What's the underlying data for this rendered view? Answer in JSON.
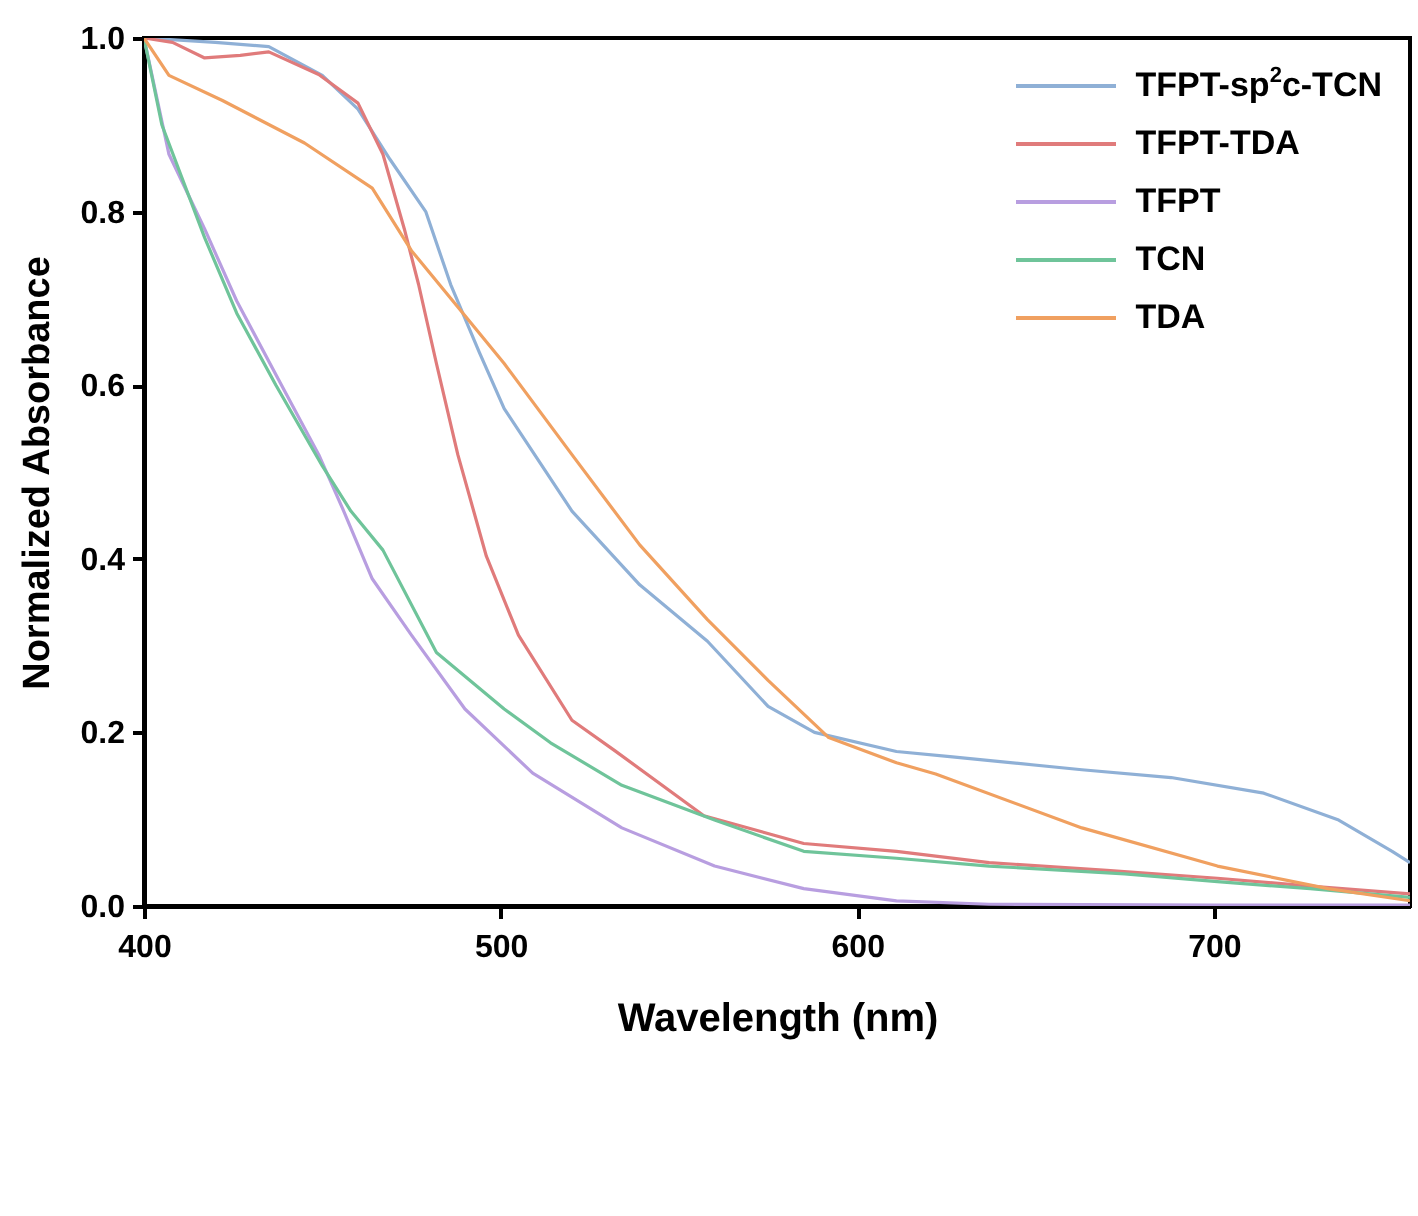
{
  "chart_data": {
    "type": "line",
    "xlabel": "Wavelength (nm)",
    "ylabel": "Normalized Absorbance",
    "xlim": [
      400,
      755
    ],
    "ylim": [
      0,
      1
    ],
    "xticks": [
      400,
      500,
      600,
      700
    ],
    "yticks": [
      {
        "value": 0,
        "label": "0.0"
      },
      0.2,
      0.4,
      0.6,
      0.8,
      {
        "value": 1,
        "label": "1.0"
      }
    ],
    "grid": false,
    "legend": "top right",
    "line_style": "solid",
    "series": [
      {
        "name": "TFPT-sp$^{2}$c-TCN",
        "color": "#8fb0d6",
        "x": [
          400,
          420,
          435,
          450,
          460,
          469,
          479,
          486,
          494,
          501,
          520,
          539,
          558,
          575,
          588,
          611,
          626,
          663,
          688,
          714,
          735,
          750,
          755
        ],
        "values": [
          1.0,
          0.995,
          0.99,
          0.957,
          0.918,
          0.86,
          0.8,
          0.716,
          0.638,
          0.573,
          0.455,
          0.37,
          0.305,
          0.23,
          0.2,
          0.178,
          0.172,
          0.157,
          0.148,
          0.13,
          0.099,
          0.063,
          0.05
        ]
      },
      {
        "name": "TFPT-TDA",
        "color": "#e07b7b",
        "x": [
          400,
          408,
          417,
          427,
          435,
          449,
          460,
          467,
          473,
          477,
          482,
          488,
          496,
          505,
          520,
          532,
          557,
          585,
          611,
          637,
          670,
          701,
          727,
          755
        ],
        "values": [
          1.0,
          0.995,
          0.977,
          0.98,
          0.984,
          0.958,
          0.925,
          0.866,
          0.78,
          0.716,
          0.625,
          0.52,
          0.403,
          0.312,
          0.214,
          0.179,
          0.104,
          0.072,
          0.063,
          0.05,
          0.041,
          0.032,
          0.023,
          0.014
        ]
      },
      {
        "name": "TFPT",
        "color": "#b89ee0",
        "x": [
          400,
          407,
          417,
          426,
          437,
          449,
          456,
          464,
          475,
          490,
          509,
          534,
          560,
          585,
          611,
          637,
          700,
          755
        ],
        "values": [
          1.0,
          0.866,
          0.78,
          0.697,
          0.612,
          0.52,
          0.455,
          0.377,
          0.312,
          0.227,
          0.153,
          0.09,
          0.046,
          0.02,
          0.006,
          0.002,
          0.001,
          0.001
        ]
      },
      {
        "name": "TCN",
        "color": "#6fc49a",
        "x": [
          400,
          405,
          417,
          426,
          437,
          450,
          458,
          467,
          482,
          501,
          514,
          534,
          560,
          585,
          611,
          637,
          675,
          701,
          727,
          755
        ],
        "values": [
          1.0,
          0.9,
          0.77,
          0.683,
          0.6,
          0.507,
          0.455,
          0.41,
          0.292,
          0.227,
          0.188,
          0.139,
          0.099,
          0.063,
          0.055,
          0.046,
          0.037,
          0.028,
          0.02,
          0.01
        ]
      },
      {
        "name": "TDA",
        "color": "#f0a060",
        "x": [
          400,
          407,
          422,
          445,
          464,
          475,
          488,
          501,
          520,
          539,
          558,
          575,
          592,
          611,
          622,
          663,
          701,
          732,
          755
        ],
        "values": [
          1.0,
          0.957,
          0.928,
          0.879,
          0.827,
          0.755,
          0.69,
          0.625,
          0.52,
          0.416,
          0.33,
          0.26,
          0.194,
          0.165,
          0.152,
          0.09,
          0.046,
          0.02,
          0.006
        ]
      }
    ]
  }
}
